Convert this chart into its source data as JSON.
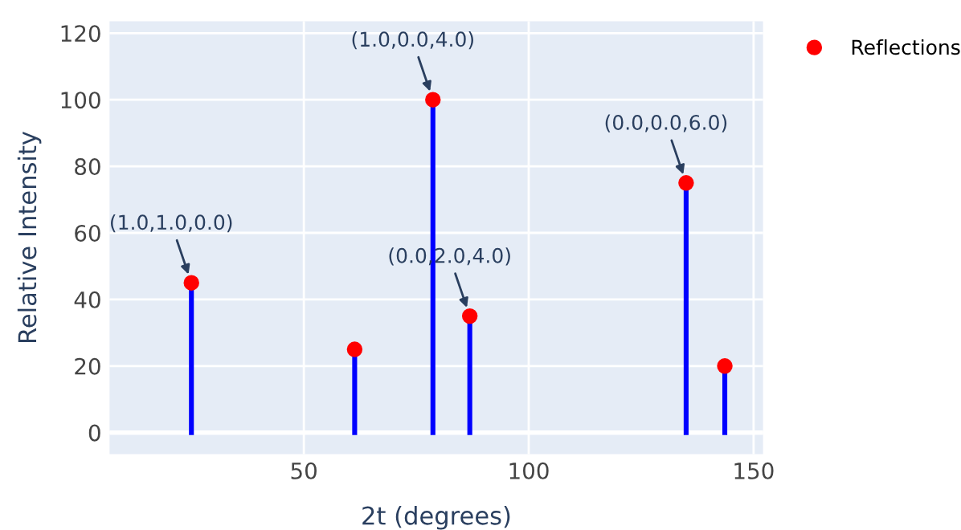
{
  "chart_data": {
    "type": "lollipop",
    "xlabel": "2t (degrees)",
    "ylabel": "Relative Intensity",
    "x": [
      25.0,
      61.3,
      78.7,
      86.9,
      135.0,
      143.6
    ],
    "series": [
      {
        "name": "Reflections",
        "color": "#0000ff",
        "colors": [
          "#ff0000",
          "#ff0000",
          "#ff0000",
          "#ff0000",
          "#ff0000",
          "#ff0000"
        ],
        "values": [
          45,
          25,
          100,
          35,
          75,
          20
        ]
      }
    ],
    "xlim": [
      6.8,
      152.1
    ],
    "xticks": [
      50,
      100,
      150
    ],
    "ylim": [
      -6.5,
      123.6
    ],
    "yticks": [
      0,
      20,
      40,
      60,
      80,
      100,
      120
    ],
    "grid": true,
    "legend": "top right",
    "marker": "circle",
    "annotations": [
      {
        "text": "(1.0,1.0,0.0)",
        "x": 25.0,
        "y": 45
      },
      {
        "text": "(1.0,0.0,4.0)",
        "x": 78.7,
        "y": 100
      },
      {
        "text": "(0.0,2.0,4.0)",
        "x": 86.9,
        "y": 35
      },
      {
        "text": "(0.0,0.0,6.0)",
        "x": 135.0,
        "y": 75
      }
    ]
  }
}
